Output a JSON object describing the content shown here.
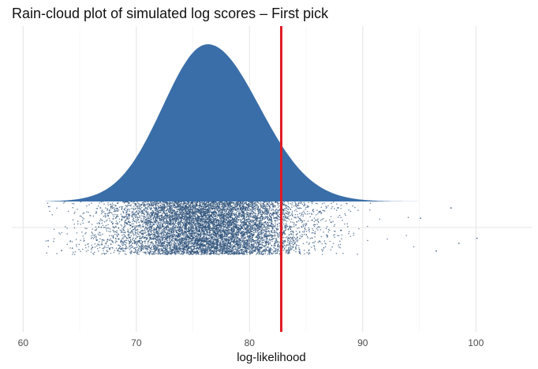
{
  "chart_data": {
    "type": "raincloud",
    "title": "Rain-cloud plot of simulated log scores – First pick",
    "xlabel": "log-likelihood",
    "ylabel": "",
    "xlim": [
      59,
      105
    ],
    "x_ticks": [
      60,
      70,
      80,
      90,
      100
    ],
    "grid": true,
    "legend": "none",
    "density": {
      "mean": 76.3,
      "sd": 4.3,
      "min": 62,
      "max": 100,
      "color": "#3a6ea8"
    },
    "jitter_points": {
      "n_shown": 9000,
      "range": [
        62,
        100
      ],
      "color": "#2d527a",
      "notable_outliers": [
        62.2,
        63.4,
        95.1,
        96.5,
        97.8,
        98.5,
        100.1
      ]
    },
    "reference_line": {
      "x": 82.8,
      "color": "#e01b24"
    }
  }
}
